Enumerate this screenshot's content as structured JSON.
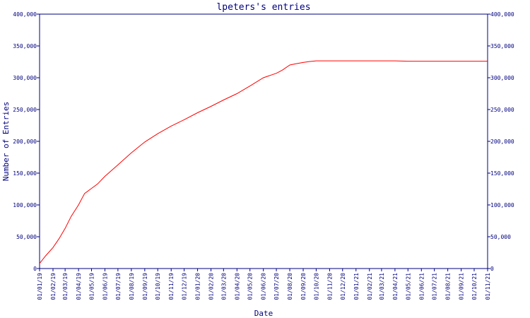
{
  "chart_data": {
    "type": "line",
    "title": "lpeters's entries",
    "xlabel": "Date",
    "ylabel": "Number of Entries",
    "ylim": [
      0,
      400000
    ],
    "yticks": [
      0,
      50000,
      100000,
      150000,
      200000,
      250000,
      300000,
      350000,
      400000
    ],
    "ytick_labels": [
      "0",
      "50,000",
      "100,000",
      "150,000",
      "200,000",
      "250,000",
      "300,000",
      "350,000",
      "400,000"
    ],
    "xlim": [
      "2019-01-01",
      "2021-11-01"
    ],
    "xtick_labels": [
      "01/01/19",
      "01/02/19",
      "01/03/19",
      "01/04/19",
      "01/05/19",
      "01/06/19",
      "01/07/19",
      "01/08/19",
      "01/09/19",
      "01/10/19",
      "01/11/19",
      "01/12/19",
      "01/01/20",
      "01/02/20",
      "01/03/20",
      "01/04/20",
      "01/05/20",
      "01/06/20",
      "01/07/20",
      "01/08/20",
      "01/09/20",
      "01/10/20",
      "01/11/20",
      "01/12/20",
      "01/01/21",
      "01/02/21",
      "01/03/21",
      "01/04/21",
      "01/05/21",
      "01/06/21",
      "01/07/21",
      "01/08/21",
      "01/09/21",
      "01/10/21",
      "01/11/21"
    ],
    "grid": false,
    "y_axis_right": true,
    "colors": {
      "line": "#ff0000",
      "axis": "#000080",
      "text": "#000080"
    },
    "series": [
      {
        "x": [
          "2019-01-01",
          "2019-01-15",
          "2019-02-01",
          "2019-02-15",
          "2019-03-01",
          "2019-03-15",
          "2019-04-01",
          "2019-04-15",
          "2019-05-01",
          "2019-05-15",
          "2019-06-01",
          "2019-07-01",
          "2019-08-01",
          "2019-09-01",
          "2019-10-01",
          "2019-11-01",
          "2019-12-01",
          "2020-01-01",
          "2020-02-01",
          "2020-03-01",
          "2020-04-01",
          "2020-05-01",
          "2020-06-01",
          "2020-07-01",
          "2020-07-15",
          "2020-08-01",
          "2020-08-15",
          "2020-09-01",
          "2020-09-15",
          "2020-10-01",
          "2020-11-01",
          "2020-12-01",
          "2021-01-01",
          "2021-02-01",
          "2021-03-01",
          "2021-04-01",
          "2021-05-01",
          "2021-06-01",
          "2021-07-01",
          "2021-08-01",
          "2021-09-01",
          "2021-10-01",
          "2021-11-01"
        ],
        "values": [
          8000,
          20000,
          33000,
          47000,
          63000,
          82000,
          100000,
          118000,
          126000,
          133000,
          145000,
          163000,
          182000,
          199000,
          212000,
          224000,
          234000,
          245000,
          255000,
          265000,
          275000,
          287000,
          300000,
          307000,
          312000,
          320000,
          322000,
          324000,
          325500,
          326500,
          326500,
          326500,
          326500,
          326500,
          326500,
          326500,
          326000,
          326000,
          326000,
          326000,
          326000,
          326000,
          326000
        ]
      }
    ]
  }
}
